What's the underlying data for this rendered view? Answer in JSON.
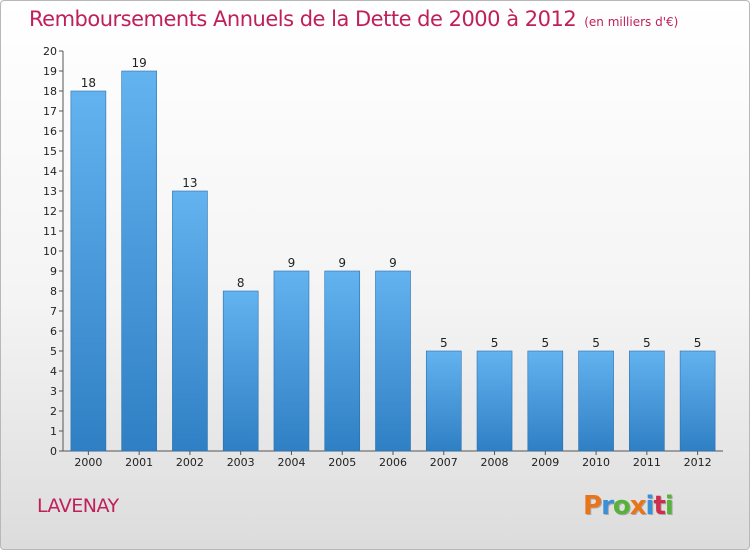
{
  "header": {
    "title": "Remboursements Annuels de la Dette de 2000 à 2012",
    "unit": "(en milliers d'€)"
  },
  "footer": {
    "place": "LAVENAY",
    "logo": {
      "letters": [
        "P",
        "r",
        "o",
        "x",
        "i",
        "t",
        "i"
      ],
      "colors": [
        "#e8751a",
        "#3a8fd6",
        "#56b33a",
        "#e8751a",
        "#3a8fd6",
        "#cc2e4c",
        "#56b33a"
      ]
    }
  },
  "chart_data": {
    "type": "bar",
    "categories": [
      "2000",
      "2001",
      "2002",
      "2003",
      "2004",
      "2005",
      "2006",
      "2007",
      "2008",
      "2009",
      "2010",
      "2011",
      "2012"
    ],
    "values": [
      18,
      19,
      13,
      8,
      9,
      9,
      9,
      5,
      5,
      5,
      5,
      5,
      5
    ],
    "data_labels": [
      "18",
      "19",
      "13",
      "8",
      "9",
      "9",
      "9",
      "5",
      "5",
      "5",
      "5",
      "5",
      "5"
    ],
    "title": "Remboursements Annuels de la Dette de 2000 à 2012",
    "ylabel": "(en milliers d'€)",
    "ylim": [
      0,
      20
    ],
    "yticks": [
      0,
      1,
      2,
      3,
      4,
      5,
      6,
      7,
      8,
      9,
      10,
      11,
      12,
      13,
      14,
      15,
      16,
      17,
      18,
      19,
      20
    ],
    "grid": false,
    "bar_color": "#4f9ee0"
  }
}
